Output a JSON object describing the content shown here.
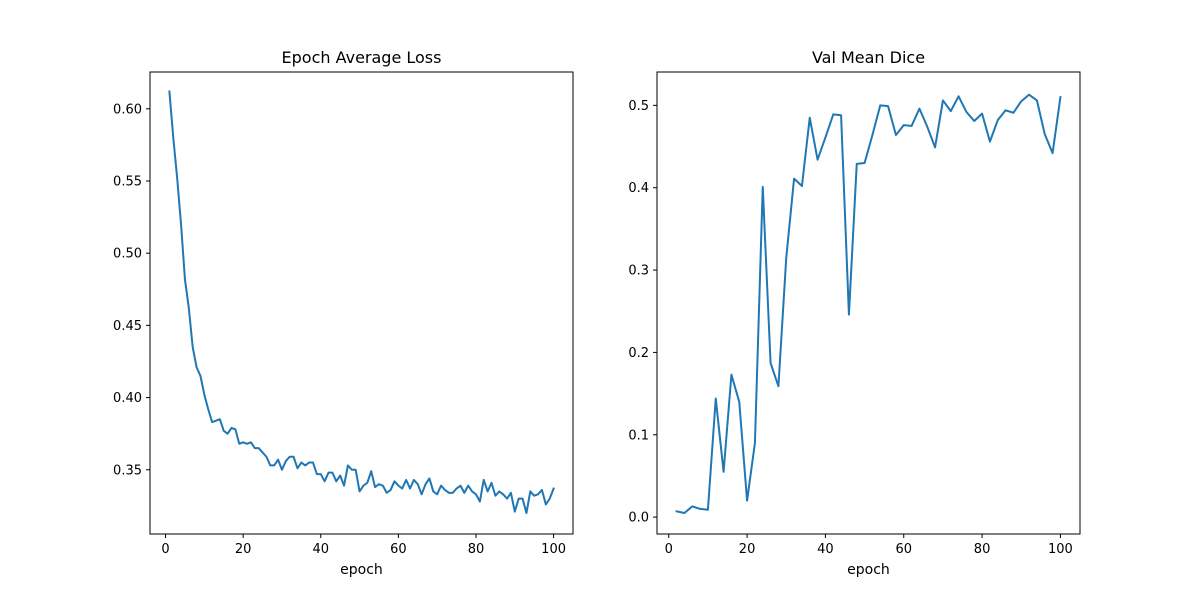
{
  "chart_data": [
    {
      "type": "line",
      "title": "Epoch Average Loss",
      "xlabel": "epoch",
      "ylabel": "",
      "xlim": [
        -4,
        105
      ],
      "ylim": [
        0.3055,
        0.6255
      ],
      "xticks": [
        0,
        20,
        40,
        60,
        80,
        100
      ],
      "yticks": [
        0.35,
        0.4,
        0.45,
        0.5,
        0.55,
        0.6
      ],
      "ytick_labels": [
        "0.35",
        "0.40",
        "0.45",
        "0.50",
        "0.55",
        "0.60"
      ],
      "grid": false,
      "color": "#1f77b4",
      "series": [
        {
          "x": [
            1,
            2,
            3,
            4,
            5,
            6,
            7,
            8,
            9,
            10,
            11,
            12,
            13,
            14,
            15,
            16,
            17,
            18,
            19,
            20,
            21,
            22,
            23,
            24,
            25,
            26,
            27,
            28,
            29,
            30,
            31,
            32,
            33,
            34,
            35,
            36,
            37,
            38,
            39,
            40,
            41,
            42,
            43,
            44,
            45,
            46,
            47,
            48,
            49,
            50,
            51,
            52,
            53,
            54,
            55,
            56,
            57,
            58,
            59,
            60,
            61,
            62,
            63,
            64,
            65,
            66,
            67,
            68,
            69,
            70,
            71,
            72,
            73,
            74,
            75,
            76,
            77,
            78,
            79,
            80,
            81,
            82,
            83,
            84,
            85,
            86,
            87,
            88,
            89,
            90,
            91,
            92,
            93,
            94,
            95,
            96,
            97,
            98,
            99,
            100
          ],
          "values": [
            0.612,
            0.58,
            0.552,
            0.52,
            0.482,
            0.462,
            0.435,
            0.421,
            0.415,
            0.402,
            0.392,
            0.383,
            0.384,
            0.385,
            0.377,
            0.375,
            0.379,
            0.378,
            0.368,
            0.369,
            0.368,
            0.369,
            0.365,
            0.365,
            0.362,
            0.359,
            0.353,
            0.353,
            0.357,
            0.35,
            0.356,
            0.359,
            0.359,
            0.351,
            0.355,
            0.353,
            0.355,
            0.355,
            0.347,
            0.347,
            0.342,
            0.348,
            0.348,
            0.342,
            0.346,
            0.339,
            0.353,
            0.35,
            0.35,
            0.335,
            0.339,
            0.341,
            0.349,
            0.338,
            0.34,
            0.339,
            0.334,
            0.336,
            0.342,
            0.339,
            0.337,
            0.343,
            0.337,
            0.343,
            0.34,
            0.333,
            0.34,
            0.344,
            0.335,
            0.333,
            0.339,
            0.336,
            0.334,
            0.334,
            0.337,
            0.339,
            0.334,
            0.339,
            0.335,
            0.333,
            0.328,
            0.343,
            0.335,
            0.341,
            0.332,
            0.335,
            0.333,
            0.33,
            0.334,
            0.321,
            0.33,
            0.33,
            0.32,
            0.335,
            0.332,
            0.333,
            0.336,
            0.326,
            0.33,
            0.337
          ]
        }
      ]
    },
    {
      "type": "line",
      "title": "Val Mean Dice",
      "xlabel": "epoch",
      "ylabel": "",
      "xlim": [
        -3,
        105
      ],
      "ylim": [
        -0.0205,
        0.5405
      ],
      "xticks": [
        0,
        20,
        40,
        60,
        80,
        100
      ],
      "yticks": [
        0.0,
        0.1,
        0.2,
        0.3,
        0.4,
        0.5
      ],
      "ytick_labels": [
        "0.0",
        "0.1",
        "0.2",
        "0.3",
        "0.4",
        "0.5"
      ],
      "grid": false,
      "color": "#1f77b4",
      "series": [
        {
          "x": [
            2,
            4,
            6,
            8,
            10,
            12,
            14,
            16,
            18,
            20,
            22,
            24,
            26,
            28,
            30,
            32,
            34,
            36,
            38,
            40,
            42,
            44,
            46,
            48,
            50,
            52,
            54,
            56,
            58,
            60,
            62,
            64,
            66,
            68,
            70,
            72,
            74,
            76,
            78,
            80,
            82,
            84,
            86,
            88,
            90,
            92,
            94,
            96,
            98,
            100
          ],
          "values": [
            0.007,
            0.005,
            0.013,
            0.01,
            0.009,
            0.144,
            0.055,
            0.173,
            0.14,
            0.02,
            0.09,
            0.401,
            0.187,
            0.159,
            0.315,
            0.411,
            0.402,
            0.485,
            0.434,
            0.461,
            0.489,
            0.488,
            0.246,
            0.429,
            0.43,
            0.464,
            0.5,
            0.499,
            0.464,
            0.476,
            0.475,
            0.496,
            0.474,
            0.449,
            0.506,
            0.493,
            0.511,
            0.492,
            0.481,
            0.49,
            0.456,
            0.482,
            0.494,
            0.491,
            0.505,
            0.513,
            0.506,
            0.465,
            0.442,
            0.51
          ]
        }
      ]
    }
  ]
}
